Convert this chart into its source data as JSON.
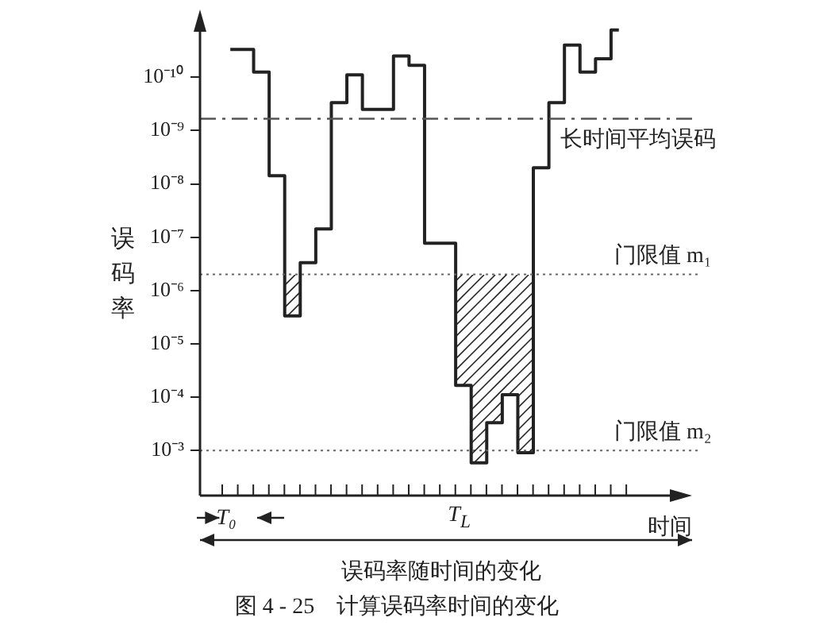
{
  "chart_data": {
    "type": "step",
    "title": "图 4 - 25    计算误码率时间的变化",
    "xlabel": "时间",
    "ylabel": "误码率",
    "categories": [
      null,
      null,
      null,
      null,
      null,
      null,
      null,
      null,
      null,
      null,
      null,
      null,
      null,
      null,
      null,
      null,
      null,
      null,
      null,
      null,
      null,
      null,
      null,
      null,
      null,
      null
    ],
    "series": [
      {
        "color": "#222222",
        "values": [
          3e-11,
          3e-11,
          8e-11,
          7e-09,
          3e-06,
          3e-07,
          7e-08,
          3e-10,
          9e-11,
          4e-10,
          4e-10,
          4e-11,
          6e-11,
          1.3e-07,
          1.3e-07,
          6e-05,
          0.0017,
          0.0003,
          9e-05,
          0.0011,
          5e-09,
          3e-10,
          2.5e-11,
          8e-11,
          4.5e-11,
          1.3e-11
        ]
      }
    ],
    "log": "y",
    "ylim": [
      0.007,
      8e-12
    ],
    "yticks": [
      {
        "value": 1e-10,
        "label": "10⁻¹⁰"
      },
      {
        "value": 1e-09,
        "label": "10⁻⁹"
      },
      {
        "value": 1e-08,
        "label": "10⁻⁸"
      },
      {
        "value": 1e-07,
        "label": "10⁻⁷"
      },
      {
        "value": 1e-06,
        "label": "10⁻⁶"
      },
      {
        "value": 1e-05,
        "label": "10⁻⁵"
      },
      {
        "value": 0.0001,
        "label": "10⁻⁴"
      },
      {
        "value": 0.001,
        "label": "10⁻³"
      }
    ],
    "grid": false,
    "legend": false,
    "marker": "none",
    "line_style": "solid",
    "tick_labels": "y",
    "ref_lines": [
      {
        "axis": "y",
        "value": 6e-10,
        "label": "长时间平均误码",
        "line_style": "dashed",
        "color": "#555555"
      },
      {
        "axis": "y",
        "value": 5e-07,
        "label": "门限值 m₁",
        "line_style": "dotted",
        "color": "#666666"
      },
      {
        "axis": "y",
        "value": 0.001,
        "label": "门限值 m₂",
        "line_style": "dotted",
        "color": "#666666"
      }
    ],
    "annotations": [
      "T₀",
      "T$_{L}$",
      "误码率随时间的变化"
    ]
  }
}
